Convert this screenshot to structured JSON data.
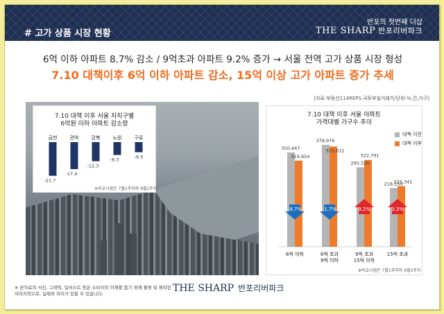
{
  "header": {
    "section_title": "# 고가 상품 시장 현황",
    "brand_tagline": "반포의 첫번째 더샵",
    "brand_logo": "THE SHARP",
    "brand_sub": "반포리버파크"
  },
  "headline": {
    "line1": "6억 이하 아파트 8.7% 감소 / 9억초과 아파트 9.2% 증가 → 서울 전역 고가 상품 시장 형성",
    "line2": "7.10 대책이후 6억 이하 아파트 감소, 15억 이상 고가 아파트 증가 추세"
  },
  "source": "[자료:부동산114REPS,국토부실거래가/단위:%,건,가구]",
  "photo_note": "",
  "left_chart": {
    "title_line1": "7.10 대책 이후 서울 자치구별",
    "title_line2": "6억원 이하 아파트 감소량",
    "note": "※비교시점은 7월1주차와 9월1주차",
    "colors": {
      "bar": "#1f3566"
    }
  },
  "right_chart": {
    "title_line1": "7.10 대책 이후 서울 아파트",
    "title_line2": "가격대별 가구수 추이",
    "legend_before": "대책 이전",
    "legend_after": "대책 이후",
    "note": "※비교시점은 7월1주차와 9월1주차",
    "colors": {
      "before": "#b5b5b5",
      "after": "#ef7a2a",
      "down": "#1f6fbf",
      "up": "#e3262b"
    }
  },
  "chart_data": [
    {
      "type": "bar",
      "title": "7.10 대책 이후 서울 자치구별 6억원 이하 아파트 감소량",
      "categories": [
        "금천",
        "관악",
        "강북",
        "노원",
        "구로"
      ],
      "values": [
        -21.7,
        -17.4,
        -12.3,
        -8.3,
        -6.5
      ],
      "ylim": [
        -25,
        0
      ]
    },
    {
      "type": "bar",
      "title": "7.10 대책 이후 서울 아파트 가격대별 가구수 추이",
      "categories": [
        "6억 이하",
        "6억 초과\n9억 이하",
        "9억 초과\n15억 이하",
        "15억 초과"
      ],
      "series": [
        {
          "name": "대책 이전",
          "values": [
            350447,
            378976,
            295520,
            218150
          ]
        },
        {
          "name": "대책 이후",
          "values": [
            319954,
            372612,
            322791,
            225341
          ]
        }
      ],
      "change_labels": [
        "-8.7%",
        "-1.7%",
        "9.2%",
        "3.3%"
      ],
      "change_direction": [
        "down",
        "down",
        "up",
        "up"
      ],
      "ylim": [
        0,
        420000
      ]
    }
  ],
  "footer": {
    "disclaimer_line1": "※ 본자료의 사진, 그래픽, 일러스트 등은 소비자의 이해를 돕기 위해 촬영 및 제작된",
    "disclaimer_line2": "이미지컷으로, 실제와 차이가 있을 수 있습니다.",
    "logo": "THE SHARP",
    "logo_sub": "반포리버파크"
  }
}
